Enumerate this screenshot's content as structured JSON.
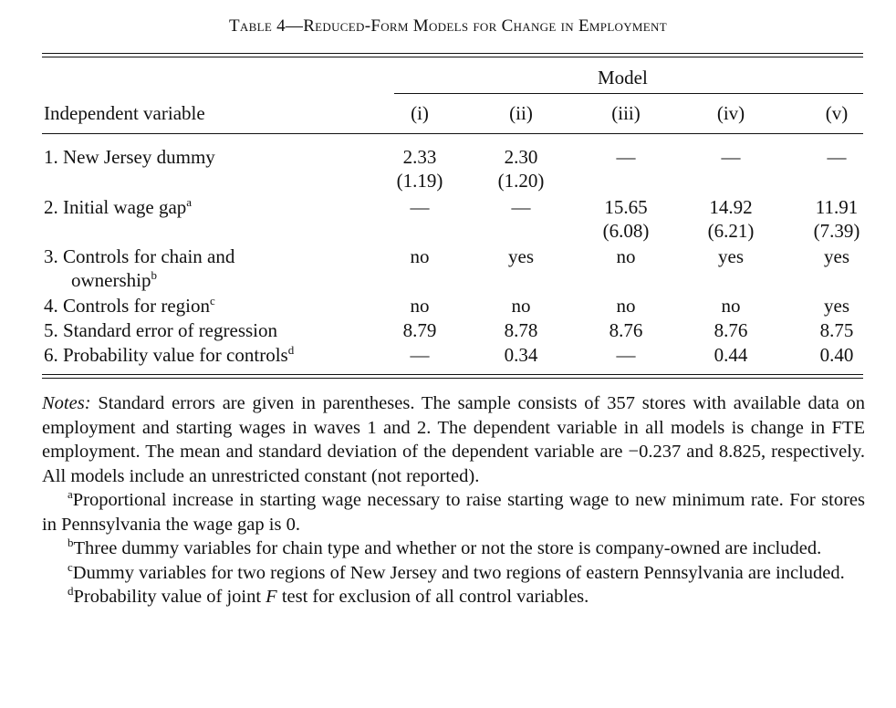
{
  "title": "Table 4—Reduced-Form Models for Change in Employment",
  "header": {
    "model_label": "Model",
    "independent_variable": "Independent variable",
    "columns": [
      "(i)",
      "(ii)",
      "(iii)",
      "(iv)",
      "(v)"
    ]
  },
  "rows": [
    {
      "label": "1. New Jersey dummy",
      "sup": "",
      "values": [
        "2.33",
        "2.30",
        "—",
        "—",
        "—"
      ],
      "se": [
        "(1.19)",
        "(1.20)",
        "",
        "",
        ""
      ]
    },
    {
      "label": "2. Initial wage gap",
      "sup": "a",
      "values": [
        "—",
        "—",
        "15.65",
        "14.92",
        "11.91"
      ],
      "se": [
        "",
        "",
        "(6.08)",
        "(6.21)",
        "(7.39)"
      ]
    },
    {
      "label": "3. Controls for chain and",
      "label2": "ownership",
      "sup": "b",
      "values": [
        "no",
        "yes",
        "no",
        "yes",
        "yes"
      ]
    },
    {
      "label": "4. Controls for region",
      "sup": "c",
      "values": [
        "no",
        "no",
        "no",
        "no",
        "yes"
      ]
    },
    {
      "label": "5. Standard error of regression",
      "sup": "",
      "values": [
        "8.79",
        "8.78",
        "8.76",
        "8.76",
        "8.75"
      ]
    },
    {
      "label": "6. Probability value for controls",
      "sup": "d",
      "values": [
        "—",
        "0.34",
        "—",
        "0.44",
        "0.40"
      ]
    }
  ],
  "notes": {
    "lead": "Notes:",
    "main": " Standard errors are given in parentheses. The sample consists of 357 stores with available data on employment and starting wages in waves 1 and 2. The dependent variable in all models is change in FTE employment. The mean and standard deviation of the dependent variable are −0.237 and 8.825, respectively. All models include an unrestricted constant (not reported).",
    "footnotes": [
      {
        "mark": "a",
        "text": "Proportional increase in starting wage necessary to raise starting wage to new minimum rate. For stores in Pennsylvania the wage gap is 0."
      },
      {
        "mark": "b",
        "text": "Three dummy variables for chain type and whether or not the store is company-owned are included."
      },
      {
        "mark": "c",
        "text": "Dummy variables for two regions of New Jersey and two regions of eastern Pennsylvania are included."
      },
      {
        "mark": "d",
        "text_before": "Probability value of joint ",
        "text_italic": "F",
        "text_after": " test for exclusion of all control variables."
      }
    ]
  }
}
